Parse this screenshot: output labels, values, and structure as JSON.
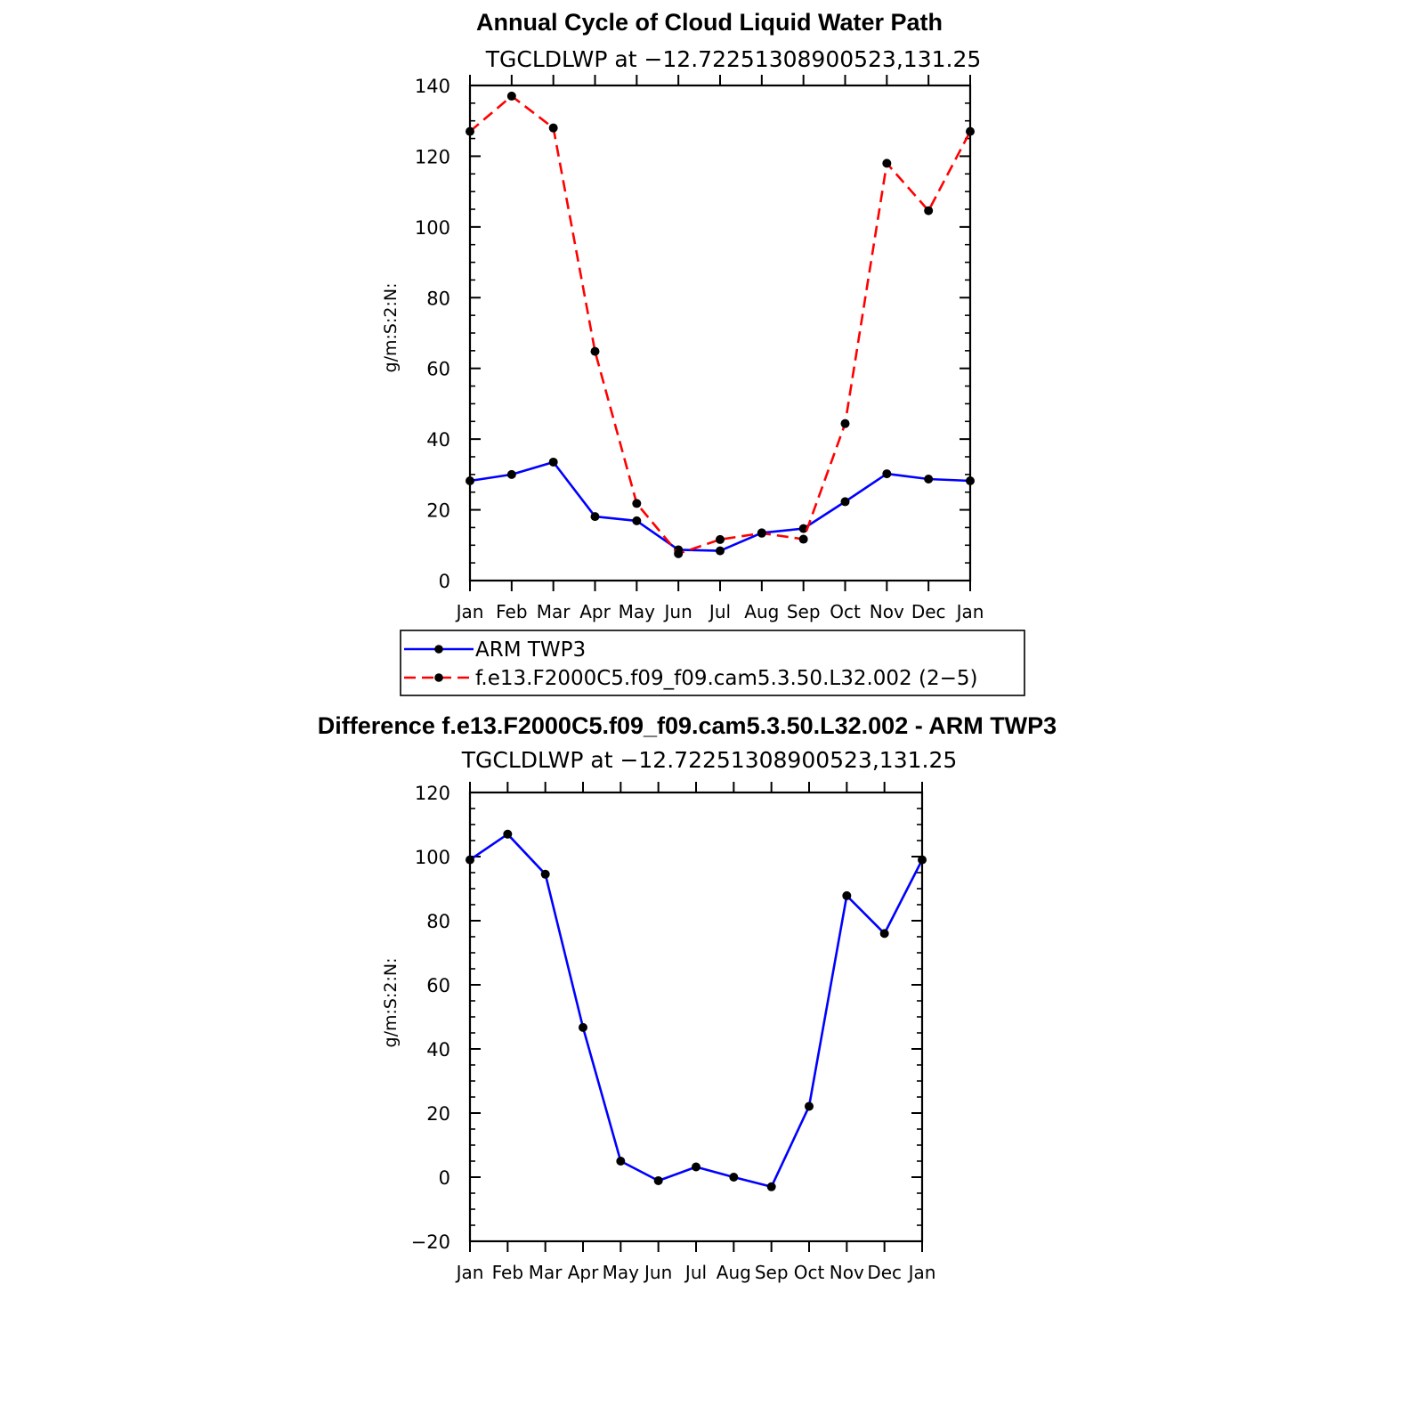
{
  "chart_data": [
    {
      "type": "line",
      "title": "Annual Cycle of Cloud Liquid Water Path",
      "subtitle": "TGCLDLWP at −12.72251308900523,131.25",
      "ylabel": "g/m:S:2:N:",
      "xlabel": "",
      "ylim": [
        0,
        140
      ],
      "yticks": [
        0,
        20,
        40,
        60,
        80,
        100,
        120,
        140
      ],
      "ytick_labels": [
        "0",
        "20",
        "40",
        "60",
        "80",
        "100",
        "120",
        "140"
      ],
      "categories": [
        "Jan",
        "Feb",
        "Mar",
        "Apr",
        "May",
        "Jun",
        "Jul",
        "Aug",
        "Sep",
        "Oct",
        "Nov",
        "Dec",
        "Jan"
      ],
      "legend_position": "bottom",
      "series": [
        {
          "name": "ARM TWP3",
          "color": "#0000ff",
          "dash": "solid",
          "values": [
            28.2,
            30.0,
            33.5,
            18.1,
            16.9,
            8.7,
            8.4,
            13.5,
            14.7,
            22.3,
            30.2,
            28.7,
            28.2
          ]
        },
        {
          "name": "f.e13.F2000C5.f09_f09.cam5.3.50.L32.002 (2−5)",
          "color": "#ff0000",
          "dash": "dashed",
          "values": [
            127.0,
            137.0,
            128.0,
            64.8,
            21.8,
            7.6,
            11.6,
            13.4,
            11.7,
            44.4,
            118.0,
            104.6,
            127.0
          ]
        }
      ]
    },
    {
      "type": "line",
      "title": "Difference f.e13.F2000C5.f09_f09.cam5.3.50.L32.002 - ARM TWP3",
      "subtitle": "TGCLDLWP at −12.72251308900523,131.25",
      "ylabel": "g/m:S:2:N:",
      "xlabel": "",
      "ylim": [
        -20,
        120
      ],
      "yticks": [
        -20,
        0,
        20,
        40,
        60,
        80,
        100,
        120
      ],
      "ytick_labels": [
        "−20",
        "0",
        "20",
        "40",
        "60",
        "80",
        "100",
        "120"
      ],
      "categories": [
        "Jan",
        "Feb",
        "Mar",
        "Apr",
        "May",
        "Jun",
        "Jul",
        "Aug",
        "Sep",
        "Oct",
        "Nov",
        "Dec",
        "Jan"
      ],
      "series": [
        {
          "name": "Difference",
          "color": "#0000ff",
          "dash": "solid",
          "values": [
            99.0,
            107.0,
            94.5,
            46.7,
            5.0,
            -1.1,
            3.2,
            0.0,
            -3.0,
            22.1,
            87.8,
            76.0,
            99.0
          ]
        }
      ]
    }
  ]
}
